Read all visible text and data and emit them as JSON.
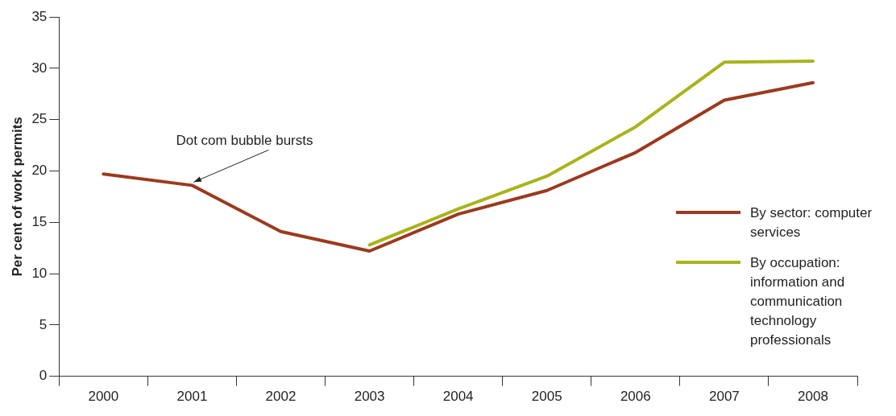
{
  "chart_data": {
    "type": "line",
    "ylabel": "Per cent of work permits",
    "categories": [
      "2000",
      "2001",
      "2002",
      "2003",
      "2004",
      "2005",
      "2006",
      "2007",
      "2008"
    ],
    "series": [
      {
        "name": "By sector: computer services",
        "color": "#9b3a1f",
        "values": [
          19.7,
          18.6,
          14.1,
          12.2,
          15.8,
          18.1,
          21.8,
          26.9,
          28.6
        ]
      },
      {
        "name": "By occupation: information and communication technology professionals",
        "color": "#a9b31b",
        "values": [
          null,
          null,
          null,
          12.8,
          16.3,
          19.5,
          24.3,
          30.6,
          30.7
        ]
      }
    ],
    "ylim": [
      0,
      35
    ],
    "yticks": [
      0,
      5,
      10,
      15,
      20,
      25,
      30,
      35
    ],
    "grid": false,
    "legend": "right",
    "marker": "none",
    "line_style": "solid",
    "annotations": [
      {
        "text": "Dot com bubble bursts",
        "x": "2001",
        "y": 18.6
      }
    ]
  }
}
